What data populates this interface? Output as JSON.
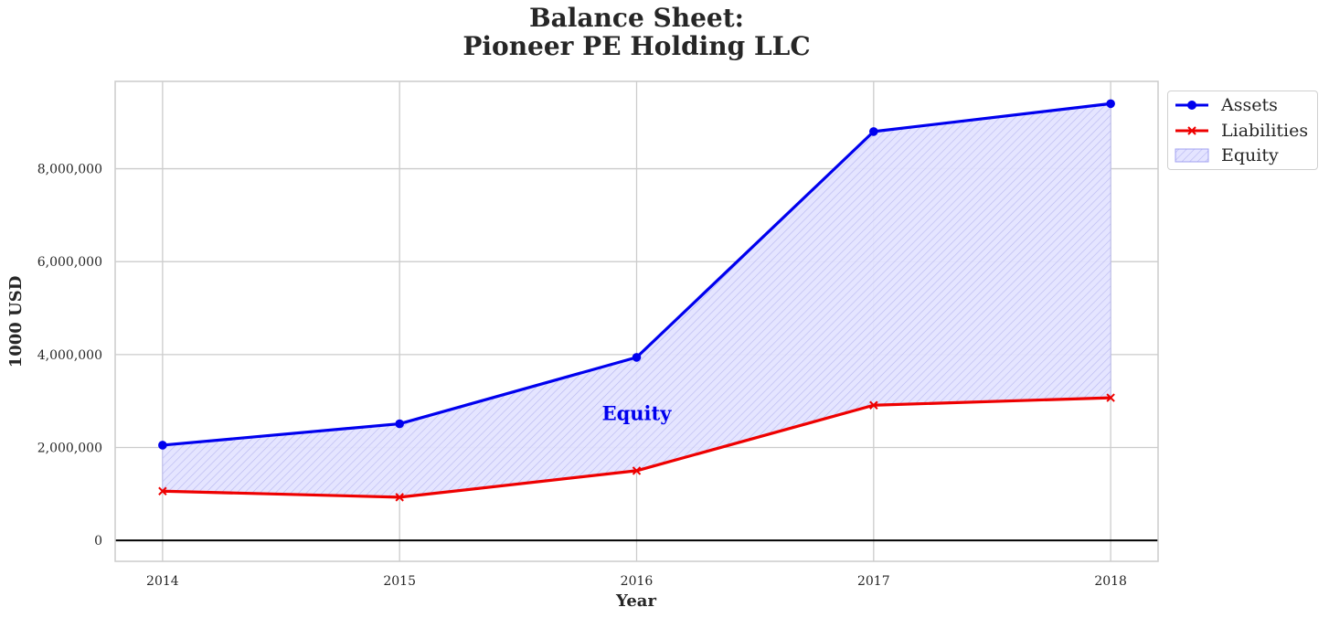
{
  "chart_data": {
    "type": "line",
    "title_line1": "Balance Sheet:",
    "title_line2": "Pioneer PE Holding LLC",
    "xlabel": "Year",
    "ylabel": "1000 USD",
    "categories": [
      "2014",
      "2015",
      "2016",
      "2017",
      "2018"
    ],
    "x": [
      2014,
      2015,
      2016,
      2017,
      2018
    ],
    "series": [
      {
        "name": "Assets",
        "values": [
          2050000,
          2510000,
          3940000,
          8800000,
          9400000
        ],
        "color": "#0000ee",
        "marker": "circle"
      },
      {
        "name": "Liabilities",
        "values": [
          1060000,
          930000,
          1500000,
          2910000,
          3070000
        ],
        "color": "#ee0000",
        "marker": "x"
      }
    ],
    "fill": {
      "name": "Equity",
      "between": [
        "Assets",
        "Liabilities"
      ],
      "color": "#0000ff",
      "hatch": "////"
    },
    "annotation": {
      "text": "Equity",
      "x": 2016,
      "y": 2750000,
      "color": "#0000ee"
    },
    "yticks": [
      0,
      2000000,
      4000000,
      6000000,
      8000000
    ],
    "ytick_labels": [
      "0",
      "2,000,000",
      "4,000,000",
      "6,000,000",
      "8,000,000"
    ],
    "xlim": [
      2013.8,
      2018.2
    ],
    "ylim": [
      -450000,
      9880000
    ],
    "zero_line": true,
    "grid": true,
    "legend_position": "outside-top-right"
  }
}
